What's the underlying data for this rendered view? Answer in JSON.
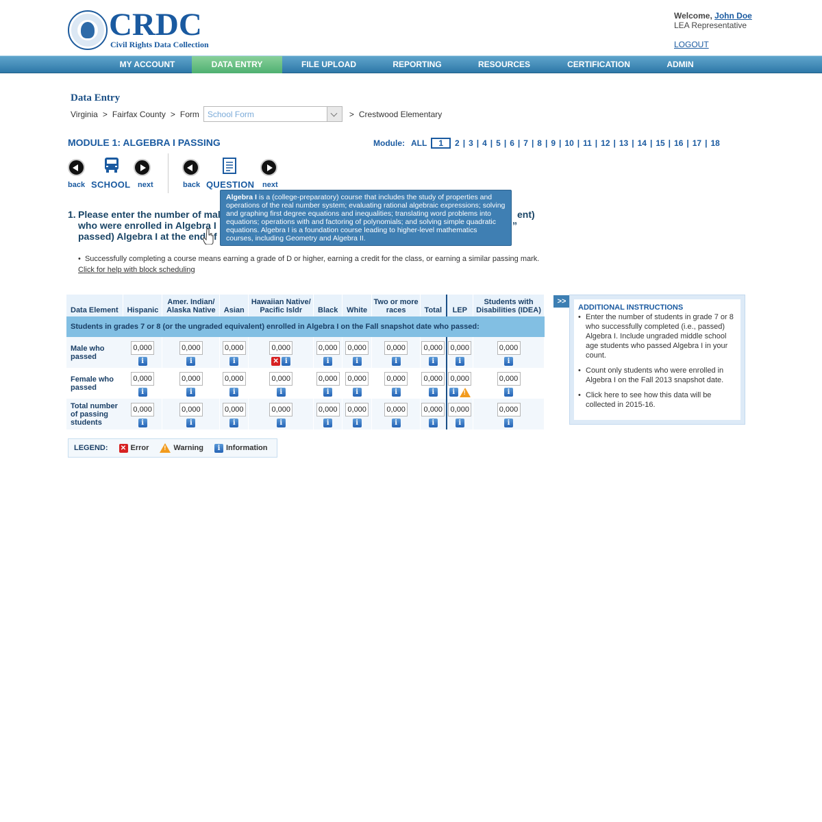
{
  "header": {
    "brand_title": "CRDC",
    "brand_subtitle": "Civil Rights Data Collection",
    "welcome_label": "Welcome,",
    "user_name": "John Doe",
    "user_role": "LEA Representative",
    "logout": "LOGOUT"
  },
  "nav": {
    "items": [
      {
        "label": "MY ACCOUNT"
      },
      {
        "label": "DATA ENTRY"
      },
      {
        "label": "FILE UPLOAD"
      },
      {
        "label": "REPORTING"
      },
      {
        "label": "RESOURCES"
      },
      {
        "label": "CERTIFICATION"
      },
      {
        "label": "ADMIN"
      }
    ],
    "active": "DATA ENTRY"
  },
  "page": {
    "section_title": "Data Entry",
    "breadcrumb": {
      "state": "Virginia",
      "county": "Fairfax County",
      "form_label": "Form",
      "form_select_value": "School Form",
      "school": "Crestwood Elementary",
      "separator": ">"
    },
    "module_title": "MODULE 1: ALGEBRA I PASSING",
    "module_nav": {
      "label": "Module:",
      "all": "ALL",
      "current": "1",
      "modules": [
        "2",
        "3",
        "4",
        "5",
        "6",
        "7",
        "8",
        "9",
        "10",
        "11",
        "12",
        "13",
        "14",
        "15",
        "16",
        "17",
        "18"
      ]
    },
    "school_nav": {
      "back": "back",
      "label": "SCHOOL",
      "next": "next"
    },
    "question_nav": {
      "back": "back",
      "label": "QUESTION",
      "next": "next"
    },
    "question": {
      "number": "1.",
      "text_line1": "Please enter the number of mal",
      "text_line1_end": "ent)",
      "text_line2": "who were enrolled in Algebra I",
      "text_line2_end": "”",
      "text_line3": "passed) Algebra I at the end",
      "text_line3_end": "f"
    },
    "tooltip": {
      "term": "Algebra I",
      "definition": "is a (college-preparatory) course that includes the study of properties and operations of the real number system; evaluating rational algebraic expressions; solving and graphing first degree equations and inequalities; translating word problems into equations; operations with and factoring of polynomials; and solving simple quadratic equations. Algebra I is a foundation course leading to higher-level mathematics courses, including Geometry and Algebra II."
    },
    "bullet": "Successfully completing a course means earning a grade of D or higher, earning a credit for the class, or earning a similar passing mark.",
    "help_link": "Click for help with block scheduling"
  },
  "table": {
    "headers": [
      "Data Element",
      "Hispanic",
      "Amer. Indian/ Alaska Native",
      "Asian",
      "Hawaiian Native/ Pacific Isldr",
      "Black",
      "White",
      "Two or more races",
      "Total",
      "LEP",
      "Students with Disabilities (IDEA)"
    ],
    "band": "Students in grades 7 or 8 (or the ungraded equivalent) enrolled in Algebra I on the Fall snapshot date who passed:",
    "rows": [
      {
        "label": "Male who passed",
        "values": [
          "0,000",
          "0,000",
          "0,000",
          "0,000",
          "0,000",
          "0,000",
          "0,000",
          "0,000",
          "0,000",
          "0,000"
        ]
      },
      {
        "label": "Female who passed",
        "values": [
          "0,000",
          "0,000",
          "0,000",
          "0,000",
          "0,000",
          "0,000",
          "0,000",
          "0,000",
          "0,000",
          "0,000"
        ]
      },
      {
        "label": "Total number of passing students",
        "values": [
          "0,000",
          "0,000",
          "0,000",
          "0,000",
          "0,000",
          "0,000",
          "0,000",
          "0,000",
          "0,000",
          "0,000"
        ]
      }
    ]
  },
  "legend": {
    "label": "LEGEND:",
    "error": "Error",
    "warning": "Warning",
    "information": "Information"
  },
  "instructions": {
    "toggle": ">>",
    "title": "ADDITIONAL INSTRUCTIONS",
    "items": [
      "Enter the number of students in grade 7 or 8 who successfully completed (i.e., passed) Algebra I.  Include ungraded middle school age students who passed Algebra I in your count.",
      "Count only students who were enrolled in Algebra I on the Fall 2013 snapshot date.",
      " Click here to see how this data will be collected in 2015-16."
    ]
  },
  "icons": {
    "info": "info-icon",
    "error": "error-icon",
    "warning": "warning-icon"
  },
  "colors": {
    "brand": "#1a5aa0",
    "nav": "#2e78a8",
    "active_tab": "#4fb071",
    "band": "#82bfe3"
  }
}
